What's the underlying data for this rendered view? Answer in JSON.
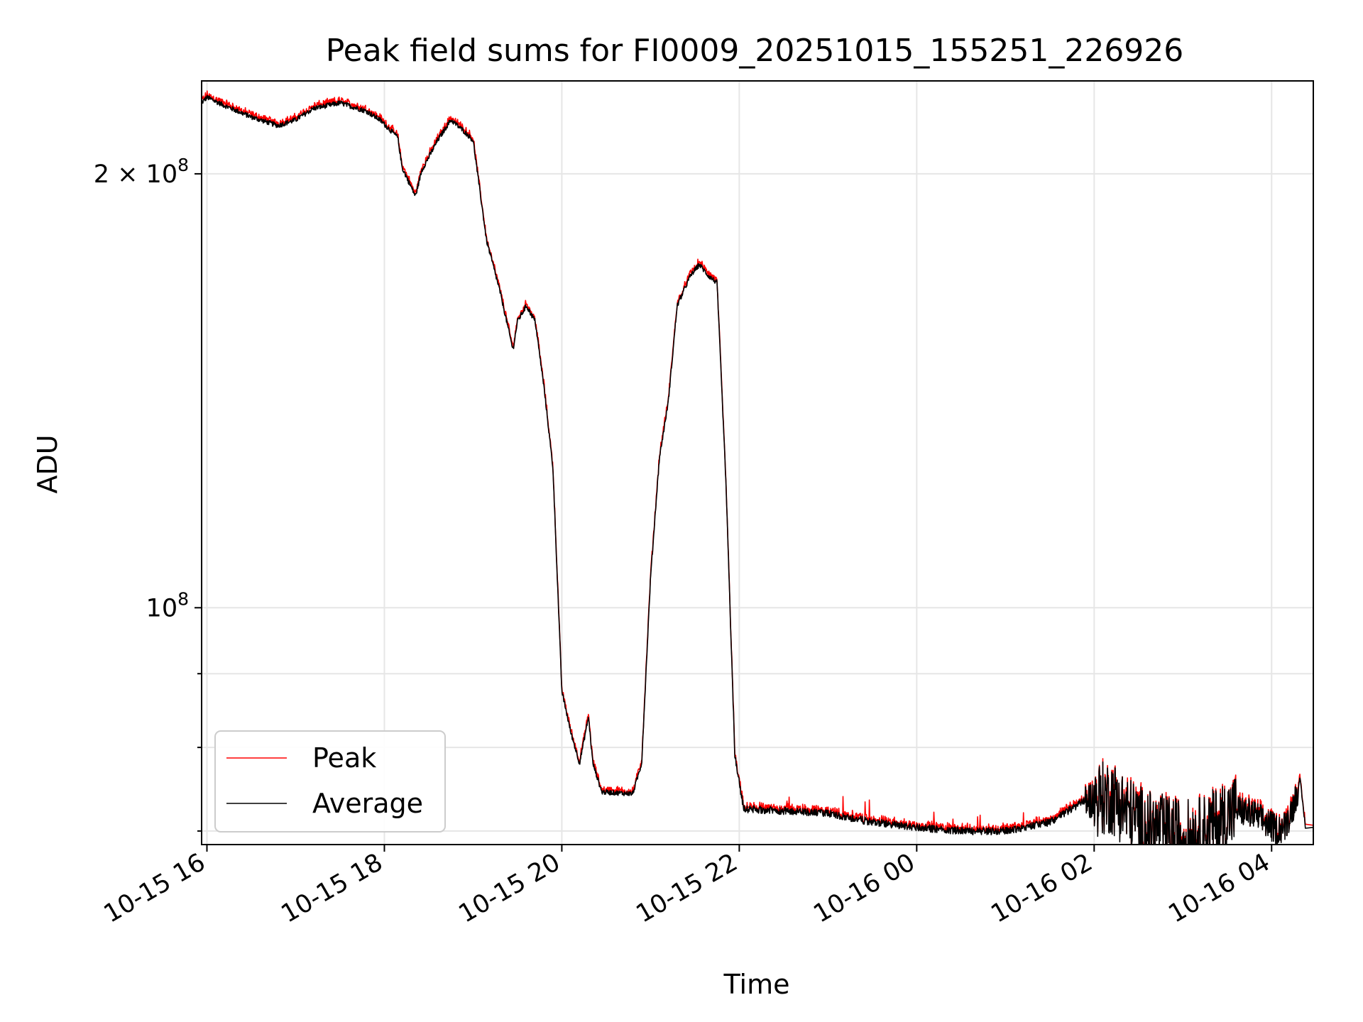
{
  "chart_data": {
    "type": "line",
    "title": "Peak field sums for FI0009_20251015_155251_226926",
    "xlabel": "Time",
    "ylabel": "ADU",
    "yscale": "log",
    "grid": true,
    "legend_position": "lower-left",
    "xlim_hours": [
      -0.06,
      12.47
    ],
    "ylim": [
      68500000,
      232000000
    ],
    "x_ticks": [
      {
        "value": 0,
        "label": "10-15 16"
      },
      {
        "value": 2,
        "label": "10-15 18"
      },
      {
        "value": 4,
        "label": "10-15 20"
      },
      {
        "value": 6,
        "label": "10-15 22"
      },
      {
        "value": 8,
        "label": "10-16 00"
      },
      {
        "value": 10,
        "label": "10-16 02"
      },
      {
        "value": 12,
        "label": "10-16 04"
      }
    ],
    "y_ticks": [
      {
        "value": 200000000,
        "mantissa": "2",
        "exponent": "8",
        "base": "10",
        "times": "×"
      },
      {
        "value": 100000000,
        "mantissa": "",
        "exponent": "8",
        "base": "10",
        "times": ""
      }
    ],
    "y_minor_ticks": [
      70000000,
      80000000,
      90000000
    ],
    "x_unit": "hours since 10-15 16:00",
    "series": [
      {
        "name": "Peak",
        "color": "#ff0000"
      },
      {
        "name": "Average",
        "color": "#000000"
      }
    ],
    "anchor_points": [
      [
        -0.06,
        224000000
      ],
      [
        0.0,
        226000000
      ],
      [
        0.2,
        223000000
      ],
      [
        0.5,
        219000000
      ],
      [
        0.8,
        216000000
      ],
      [
        1.0,
        218000000
      ],
      [
        1.2,
        222000000
      ],
      [
        1.5,
        224000000
      ],
      [
        1.8,
        221000000
      ],
      [
        1.95,
        218000000
      ],
      [
        2.15,
        212000000
      ],
      [
        2.2,
        202000000
      ],
      [
        2.35,
        193000000
      ],
      [
        2.42,
        201000000
      ],
      [
        2.6,
        211000000
      ],
      [
        2.75,
        218000000
      ],
      [
        2.9,
        214000000
      ],
      [
        3.0,
        211000000
      ],
      [
        3.15,
        180000000
      ],
      [
        3.3,
        166000000
      ],
      [
        3.45,
        151000000
      ],
      [
        3.5,
        158000000
      ],
      [
        3.6,
        162000000
      ],
      [
        3.7,
        158000000
      ],
      [
        3.8,
        142000000
      ],
      [
        3.9,
        125000000
      ],
      [
        4.0,
        87500000
      ],
      [
        4.1,
        82000000
      ],
      [
        4.2,
        78000000
      ],
      [
        4.3,
        84000000
      ],
      [
        4.35,
        78000000
      ],
      [
        4.45,
        74500000
      ],
      [
        4.8,
        74300000
      ],
      [
        4.9,
        78000000
      ],
      [
        5.0,
        105000000
      ],
      [
        5.1,
        127000000
      ],
      [
        5.2,
        139000000
      ],
      [
        5.3,
        162000000
      ],
      [
        5.45,
        170000000
      ],
      [
        5.55,
        173000000
      ],
      [
        5.65,
        170000000
      ],
      [
        5.75,
        168000000
      ],
      [
        5.85,
        122000000
      ],
      [
        5.95,
        79000000
      ],
      [
        6.05,
        72500000
      ],
      [
        6.5,
        72300000
      ],
      [
        7.0,
        72000000
      ],
      [
        7.5,
        71000000
      ],
      [
        8.0,
        70400000
      ],
      [
        8.5,
        70000000
      ],
      [
        9.0,
        70000000
      ],
      [
        9.5,
        71000000
      ],
      [
        9.9,
        73500000
      ],
      [
        10.2,
        74000000
      ],
      [
        10.4,
        72000000
      ],
      [
        10.6,
        70500000
      ],
      [
        11.0,
        69500000
      ],
      [
        11.2,
        69800000
      ],
      [
        11.4,
        71000000
      ],
      [
        11.6,
        72500000
      ],
      [
        11.8,
        71800000
      ],
      [
        12.05,
        70200000
      ],
      [
        12.15,
        70500000
      ],
      [
        12.25,
        73000000
      ],
      [
        12.32,
        76000000
      ],
      [
        12.38,
        70500000
      ]
    ]
  },
  "legend": {
    "items": [
      {
        "label": "Peak",
        "color": "#ff0000"
      },
      {
        "label": "Average",
        "color": "#000000"
      }
    ]
  }
}
